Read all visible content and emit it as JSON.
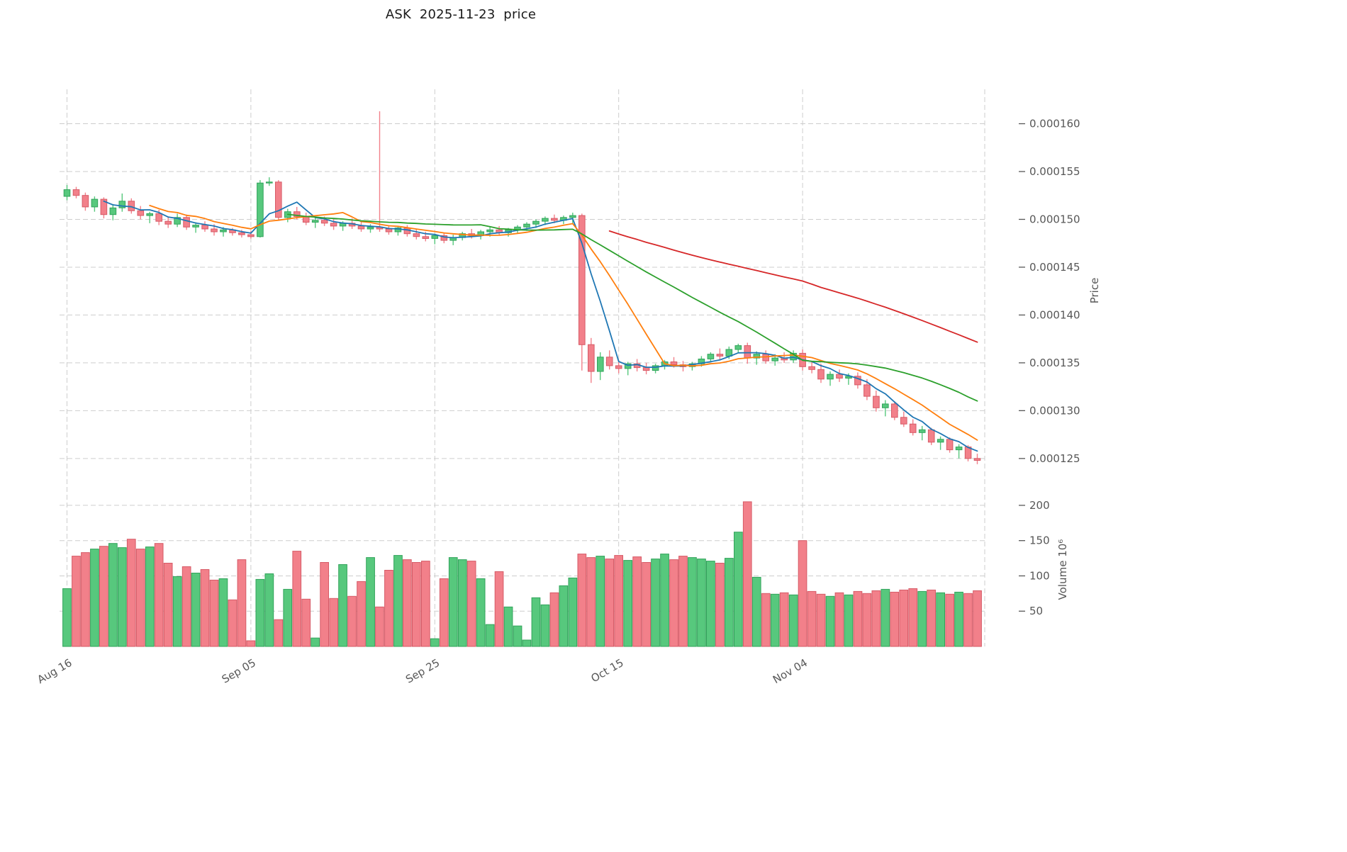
{
  "title": "ASK  2025-11-23  price",
  "chart_data": {
    "type": "candlestick",
    "panels": [
      "price",
      "volume"
    ],
    "price_unit": 1e-06,
    "x_axis": {
      "tick_labels": [
        "Aug 16",
        "Sep 05",
        "Sep 25",
        "Oct 15",
        "Nov 04"
      ],
      "tick_positions": [
        0,
        20,
        40,
        60,
        80
      ]
    },
    "price_axis": {
      "label": "Price",
      "tick_values": [
        160,
        155,
        150,
        145,
        140,
        135,
        130,
        125
      ],
      "tick_labels": [
        "0.000160",
        "0.000155",
        "0.000150",
        "0.000145",
        "0.000140",
        "0.000135",
        "0.000130",
        "0.000125"
      ],
      "domain": [
        121.8,
        163.3
      ]
    },
    "volume_axis": {
      "label": "Volume",
      "unit_label": "10⁶",
      "tick_values": [
        200,
        150,
        100,
        50
      ],
      "tick_labels": [
        "200",
        "150",
        "100",
        "50"
      ],
      "domain": [
        0,
        218
      ]
    },
    "moving_averages": [
      {
        "window": 5,
        "color": "#1f77b4"
      },
      {
        "window": 10,
        "color": "#ff7f0e"
      },
      {
        "window": 25,
        "color": "#2ca02c"
      },
      {
        "window": 60,
        "color": "#d62728"
      }
    ],
    "colors": {
      "up": "#57c87d",
      "up_edge": "#31a35a",
      "down": "#f2808a",
      "down_edge": "#d65a66",
      "grid": "#cdcdcd",
      "text": "#575757"
    },
    "candles": [
      [
        152.4,
        153.6,
        152.0,
        153.1
      ],
      [
        153.1,
        153.4,
        152.2,
        152.5
      ],
      [
        152.5,
        152.8,
        150.9,
        151.3
      ],
      [
        151.3,
        152.4,
        150.8,
        152.1
      ],
      [
        152.1,
        152.3,
        150.1,
        150.5
      ],
      [
        150.5,
        151.6,
        149.9,
        151.2
      ],
      [
        151.2,
        152.7,
        150.8,
        151.9
      ],
      [
        151.9,
        152.2,
        150.6,
        150.9
      ],
      [
        150.9,
        151.4,
        150.0,
        150.4
      ],
      [
        150.4,
        150.8,
        149.6,
        150.6
      ],
      [
        150.6,
        151.0,
        149.4,
        149.8
      ],
      [
        149.8,
        150.3,
        149.1,
        149.5
      ],
      [
        149.5,
        150.6,
        149.2,
        150.2
      ],
      [
        150.2,
        150.5,
        148.9,
        149.2
      ],
      [
        149.2,
        149.7,
        148.6,
        149.4
      ],
      [
        149.4,
        149.8,
        148.7,
        149.0
      ],
      [
        149.0,
        149.5,
        148.3,
        148.7
      ],
      [
        148.7,
        149.2,
        148.2,
        148.9
      ],
      [
        148.9,
        149.1,
        148.3,
        148.6
      ],
      [
        148.6,
        148.9,
        148.1,
        148.4
      ],
      [
        148.4,
        148.8,
        148.0,
        148.2
      ],
      [
        148.2,
        154.1,
        148.1,
        153.8
      ],
      [
        153.8,
        154.4,
        153.5,
        153.9
      ],
      [
        153.9,
        154.1,
        149.9,
        150.2
      ],
      [
        150.2,
        151.1,
        149.7,
        150.8
      ],
      [
        150.8,
        151.3,
        150.0,
        150.3
      ],
      [
        150.3,
        150.7,
        149.4,
        149.7
      ],
      [
        149.7,
        150.2,
        149.1,
        149.9
      ],
      [
        149.9,
        150.3,
        149.3,
        149.6
      ],
      [
        149.6,
        150.0,
        148.9,
        149.3
      ],
      [
        149.3,
        149.8,
        148.8,
        149.6
      ],
      [
        149.6,
        150.1,
        149.0,
        149.3
      ],
      [
        149.3,
        149.7,
        148.7,
        149.0
      ],
      [
        149.0,
        149.5,
        148.6,
        149.2
      ],
      [
        149.2,
        161.3,
        148.7,
        149.0
      ],
      [
        149.0,
        149.4,
        148.4,
        148.7
      ],
      [
        148.7,
        149.3,
        148.3,
        149.1
      ],
      [
        149.1,
        149.4,
        148.2,
        148.5
      ],
      [
        148.5,
        149.0,
        147.9,
        148.2
      ],
      [
        148.2,
        148.7,
        147.7,
        148.0
      ],
      [
        148.0,
        148.5,
        147.4,
        148.3
      ],
      [
        148.3,
        148.6,
        147.5,
        147.8
      ],
      [
        147.8,
        148.4,
        147.3,
        148.1
      ],
      [
        148.1,
        148.7,
        147.8,
        148.5
      ],
      [
        148.5,
        149.0,
        148.0,
        148.3
      ],
      [
        148.3,
        148.9,
        147.9,
        148.7
      ],
      [
        148.7,
        149.2,
        148.2,
        148.9
      ],
      [
        148.9,
        149.3,
        148.4,
        148.6
      ],
      [
        148.6,
        149.1,
        148.2,
        148.9
      ],
      [
        148.9,
        149.4,
        148.5,
        149.2
      ],
      [
        149.2,
        149.7,
        148.8,
        149.5
      ],
      [
        149.5,
        150.0,
        149.1,
        149.8
      ],
      [
        149.8,
        150.3,
        149.4,
        150.1
      ],
      [
        150.1,
        150.5,
        149.6,
        149.9
      ],
      [
        149.9,
        150.4,
        149.5,
        150.2
      ],
      [
        150.2,
        150.7,
        149.6,
        150.4
      ],
      [
        150.4,
        150.6,
        134.2,
        136.9
      ],
      [
        136.9,
        137.6,
        132.9,
        134.1
      ],
      [
        134.1,
        136.1,
        133.2,
        135.6
      ],
      [
        135.6,
        136.3,
        134.3,
        134.7
      ],
      [
        134.7,
        135.3,
        133.9,
        134.4
      ],
      [
        134.4,
        135.1,
        133.7,
        134.9
      ],
      [
        134.9,
        135.4,
        134.1,
        134.5
      ],
      [
        134.5,
        135.0,
        133.8,
        134.2
      ],
      [
        134.2,
        134.9,
        133.9,
        134.7
      ],
      [
        134.7,
        135.3,
        134.3,
        135.1
      ],
      [
        135.1,
        135.6,
        134.5,
        134.8
      ],
      [
        134.8,
        135.2,
        134.1,
        134.6
      ],
      [
        134.6,
        135.1,
        134.2,
        134.9
      ],
      [
        134.9,
        135.7,
        134.6,
        135.4
      ],
      [
        135.4,
        136.1,
        135.1,
        135.9
      ],
      [
        135.9,
        136.5,
        135.3,
        135.7
      ],
      [
        135.7,
        136.7,
        135.4,
        136.4
      ],
      [
        136.4,
        137.0,
        136.0,
        136.8
      ],
      [
        136.8,
        137.1,
        134.9,
        135.5
      ],
      [
        135.5,
        136.2,
        134.8,
        135.9
      ],
      [
        135.9,
        136.3,
        134.9,
        135.2
      ],
      [
        135.2,
        135.9,
        134.7,
        135.5
      ],
      [
        135.5,
        136.1,
        135.0,
        135.3
      ],
      [
        135.3,
        136.3,
        135.0,
        136.0
      ],
      [
        136.0,
        136.4,
        134.2,
        134.6
      ],
      [
        134.6,
        135.2,
        133.9,
        134.3
      ],
      [
        134.3,
        134.9,
        132.9,
        133.3
      ],
      [
        133.3,
        134.1,
        132.6,
        133.8
      ],
      [
        133.8,
        134.3,
        133.0,
        133.4
      ],
      [
        133.4,
        133.9,
        132.7,
        133.6
      ],
      [
        133.6,
        134.0,
        132.3,
        132.7
      ],
      [
        132.7,
        133.3,
        131.1,
        131.5
      ],
      [
        131.5,
        132.1,
        129.9,
        130.3
      ],
      [
        130.3,
        131.1,
        129.4,
        130.7
      ],
      [
        130.7,
        131.0,
        129.0,
        129.3
      ],
      [
        129.3,
        129.9,
        128.3,
        128.6
      ],
      [
        128.6,
        129.1,
        127.4,
        127.7
      ],
      [
        127.7,
        128.4,
        126.9,
        128.0
      ],
      [
        128.0,
        128.2,
        126.4,
        126.7
      ],
      [
        126.7,
        127.3,
        125.9,
        127.0
      ],
      [
        127.0,
        127.2,
        125.6,
        125.9
      ],
      [
        125.9,
        126.5,
        125.0,
        126.2
      ],
      [
        126.2,
        126.4,
        124.7,
        125.0
      ],
      [
        125.0,
        125.5,
        124.4,
        124.8
      ]
    ],
    "volumes": [
      82,
      128,
      133,
      138,
      142,
      146,
      140,
      152,
      138,
      141,
      146,
      118,
      99,
      113,
      104,
      109,
      94,
      96,
      66,
      123,
      8,
      95,
      103,
      38,
      81,
      135,
      67,
      12,
      119,
      68,
      116,
      71,
      92,
      126,
      56,
      108,
      129,
      123,
      119,
      121,
      11,
      96,
      126,
      123,
      121,
      96,
      31,
      106,
      56,
      29,
      9,
      69,
      59,
      76,
      86,
      97,
      131,
      126,
      128,
      124,
      129,
      122,
      127,
      119,
      124,
      131,
      123,
      128,
      126,
      124,
      121,
      118,
      125,
      162,
      205,
      98,
      75,
      74,
      76,
      73,
      150,
      78,
      74,
      71,
      76,
      73,
      78,
      75,
      79,
      81,
      77,
      80,
      82,
      78,
      80,
      76,
      74,
      77,
      75,
      79
    ]
  }
}
